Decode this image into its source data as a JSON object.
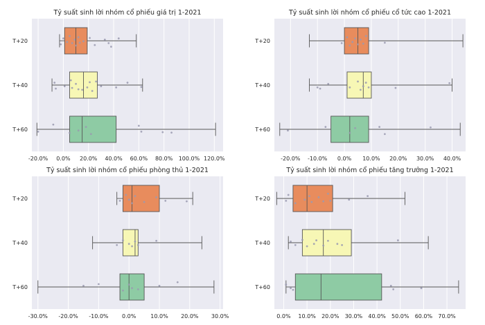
{
  "chart_data": [
    {
      "type": "boxplot",
      "title": "Tỷ suất sinh lời nhóm cổ phiếu giá trị 1-2021",
      "xlim": [
        -25,
        127
      ],
      "xticks": [
        -20,
        0,
        20,
        40,
        60,
        80,
        100,
        120
      ],
      "tick_labels": [
        "-20.0%",
        "0.0%",
        "20.0%",
        "40.0%",
        "60.0%",
        "80.0%",
        "100.0%",
        "120.0%"
      ],
      "categories": [
        "T+20",
        "T+40",
        "T+60"
      ],
      "boxes": [
        {
          "label": "T+20",
          "whisker_low": -3,
          "q1": 1,
          "median": 10,
          "q3": 19,
          "whisker_high": 58,
          "color": "#e88c5d"
        },
        {
          "label": "T+40",
          "whisker_low": -9,
          "q1": 5,
          "median": 16,
          "q3": 27,
          "whisker_high": 63,
          "color": "#f7f7b5"
        },
        {
          "label": "T+60",
          "whisker_low": -21,
          "q1": 5,
          "median": 15,
          "q3": 42,
          "whisker_high": 121,
          "color": "#8ecba4"
        }
      ],
      "points": [
        [
          [
            -2,
            0,
            3,
            5,
            7,
            9,
            10,
            12,
            13,
            16,
            21,
            25,
            33,
            36,
            38,
            44
          ],
          [
            0.15,
            -0.1,
            0.05,
            -0.2,
            0.1,
            -0.05,
            0.2,
            -0.15,
            0.08,
            0.02,
            -0.12,
            0.18,
            -0.05,
            0.1,
            0.25,
            -0.1
          ]
        ],
        [
          [
            -7,
            -6,
            1,
            6,
            7,
            10,
            12,
            15,
            19,
            21,
            23,
            26,
            30,
            42,
            51,
            62
          ],
          [
            -0.1,
            0.15,
            0.05,
            -0.2,
            0.12,
            -0.05,
            0.18,
            0.2,
            0.1,
            -0.12,
            0.25,
            -0.15,
            0.05,
            0.1,
            -0.1,
            0.08
          ]
        ],
        [
          [
            -20,
            -8,
            5,
            12,
            18,
            22,
            60,
            62,
            79,
            86
          ],
          [
            0.1,
            -0.2,
            0.15,
            0.05,
            -0.1,
            0.2,
            -0.15,
            0.1,
            0.12,
            0.14
          ]
        ]
      ]
    },
    {
      "type": "boxplot",
      "title": "Tỷ suất sinh lời nhóm cổ phiếu cổ tức cao 1-2021",
      "xlim": [
        -26,
        45
      ],
      "xticks": [
        -20,
        -10,
        0,
        10,
        20,
        30,
        40
      ],
      "tick_labels": [
        "-20.0%",
        "-10.0%",
        "0.0%",
        "10.0%",
        "20.0%",
        "30.0%",
        "40.0%"
      ],
      "categories": [
        "T+20",
        "T+40",
        "T+60"
      ],
      "boxes": [
        {
          "label": "T+20",
          "whisker_low": -13,
          "q1": 0,
          "median": 5,
          "q3": 9,
          "whisker_high": 44,
          "color": "#e88c5d"
        },
        {
          "label": "T+40",
          "whisker_low": -13,
          "q1": 1,
          "median": 7,
          "q3": 10,
          "whisker_high": 40,
          "color": "#f7f7b5"
        },
        {
          "label": "T+60",
          "whisker_low": -24,
          "q1": -5,
          "median": 2,
          "q3": 9,
          "whisker_high": 43,
          "color": "#8ecba4"
        }
      ],
      "points": [
        [
          [
            -1,
            1,
            2,
            3,
            4,
            5,
            6,
            7,
            8,
            15
          ],
          [
            0.1,
            -0.15,
            0.2,
            0.05,
            -0.1,
            0.15,
            -0.05,
            0.12,
            -0.2,
            0.08
          ]
        ],
        [
          [
            -10,
            -9,
            -6,
            2,
            5,
            6,
            7,
            8,
            9,
            19,
            39
          ],
          [
            0.1,
            0.15,
            -0.05,
            0.1,
            -0.15,
            0.2,
            0.05,
            -0.1,
            0.1,
            0.12,
            -0.08
          ]
        ],
        [
          [
            -21,
            -7,
            2,
            4,
            13,
            15,
            32
          ],
          [
            0.05,
            -0.1,
            0.15,
            -0.05,
            -0.1,
            0.2,
            -0.08
          ]
        ]
      ]
    },
    {
      "type": "boxplot",
      "title": "Tỷ suất sinh lời nhóm cổ phiếu phòng thủ 1-2021",
      "xlim": [
        -32,
        31
      ],
      "xticks": [
        -30,
        -20,
        -10,
        0,
        10,
        20,
        30
      ],
      "tick_labels": [
        "-30.0%",
        "-20.0%",
        "-10.0%",
        "0.0%",
        "10.0%",
        "20.0%",
        "30.0%"
      ],
      "categories": [
        "T+20",
        "T+40",
        "T+60"
      ],
      "boxes": [
        {
          "label": "T+20",
          "whisker_low": -4,
          "q1": -2,
          "median": 1,
          "q3": 10,
          "whisker_high": 21,
          "color": "#e88c5d"
        },
        {
          "label": "T+40",
          "whisker_low": -12,
          "q1": -2,
          "median": 2,
          "q3": 3,
          "whisker_high": 24,
          "color": "#f7f7b5"
        },
        {
          "label": "T+60",
          "whisker_low": -30,
          "q1": -3,
          "median": 0,
          "q3": 5,
          "whisker_high": 28,
          "color": "#8ecba4"
        }
      ],
      "points": [
        [
          [
            -3,
            -1,
            0,
            1,
            2,
            5,
            9,
            12,
            19
          ],
          [
            0.1,
            -0.15,
            0.05,
            0.2,
            -0.1,
            0.15,
            -0.05,
            0.1,
            0.12
          ]
        ],
        [
          [
            -4,
            -2,
            0,
            1,
            2,
            3,
            9
          ],
          [
            0.1,
            -0.1,
            0.05,
            0.15,
            -0.05,
            0.1,
            -0.08
          ]
        ],
        [
          [
            -15,
            -10,
            -2,
            0,
            1,
            3,
            10,
            16
          ],
          [
            -0.05,
            -0.12,
            0.15,
            -0.1,
            0.05,
            0.1,
            -0.05,
            -0.2
          ]
        ]
      ]
    },
    {
      "type": "boxplot",
      "title": "Tỷ suất sinh lời nhóm cổ phiếu tăng trưởng 1-2021",
      "xlim": [
        -4,
        78
      ],
      "xticks": [
        0,
        10,
        20,
        30,
        40,
        50,
        60,
        70
      ],
      "tick_labels": [
        "0.0%",
        "10.0%",
        "20.0%",
        "30.0%",
        "40.0%",
        "50.0%",
        "60.0%",
        "70.0%"
      ],
      "categories": [
        "T+20",
        "T+40",
        "T+60"
      ],
      "boxes": [
        {
          "label": "T+20",
          "whisker_low": -3,
          "q1": 4,
          "median": 10,
          "q3": 21,
          "whisker_high": 52,
          "color": "#e88c5d"
        },
        {
          "label": "T+40",
          "whisker_low": 2,
          "q1": 8,
          "median": 17,
          "q3": 29,
          "whisker_high": 62,
          "color": "#f7f7b5"
        },
        {
          "label": "T+60",
          "whisker_low": 1,
          "q1": 5,
          "median": 16,
          "q3": 42,
          "whisker_high": 75,
          "color": "#8ecba4"
        }
      ],
      "points": [
        [
          [
            1,
            2,
            5,
            9,
            11,
            12,
            15,
            17,
            19,
            20,
            28,
            36
          ],
          [
            0.1,
            -0.15,
            0.2,
            0.05,
            -0.1,
            0.15,
            -0.05,
            0.12,
            -0.2,
            0.1,
            0.05,
            -0.1
          ]
        ],
        [
          [
            3,
            5,
            8,
            10,
            13,
            14,
            17,
            19,
            23,
            25,
            49
          ],
          [
            -0.05,
            0.1,
            -0.12,
            0.15,
            0.05,
            -0.1,
            0.12,
            -0.08,
            0.05,
            0.1,
            -0.1
          ]
        ],
        [
          [
            1,
            3,
            4,
            46,
            47,
            59
          ],
          [
            -0.1,
            0.05,
            0.12,
            -0.05,
            0.1,
            0.05
          ]
        ]
      ]
    }
  ]
}
